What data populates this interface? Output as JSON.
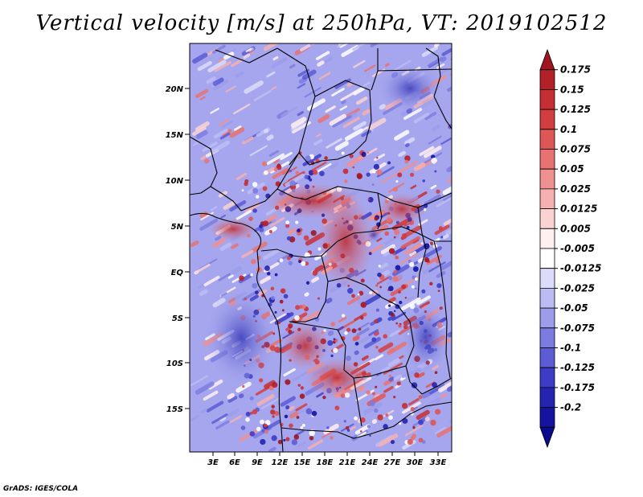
{
  "title": "Vertical velocity [m/s] at 250hPa, VT: 2019102512",
  "footer": "GrADS: IGES/COLA",
  "map": {
    "variable": "Vertical velocity",
    "units": "m/s",
    "level": "250hPa",
    "valid_time": "2019102512",
    "lat_labels": [
      "20N",
      "15N",
      "10N",
      "5N",
      "EQ",
      "5S",
      "10S",
      "15S"
    ],
    "lon_labels": [
      "3E",
      "6E",
      "9E",
      "12E",
      "15E",
      "18E",
      "21E",
      "24E",
      "27E",
      "30E",
      "33E"
    ]
  },
  "colorbar": {
    "labels": [
      "0.175",
      "0.15",
      "0.125",
      "0.1",
      "0.075",
      "0.05",
      "0.025",
      "0.0125",
      "0.005",
      "-0.005",
      "-0.0125",
      "-0.025",
      "-0.05",
      "-0.075",
      "-0.1",
      "-0.125",
      "-0.175",
      "-0.2"
    ],
    "colors": [
      "#a01620",
      "#b22028",
      "#c42e34",
      "#d23e40",
      "#de5656",
      "#e87272",
      "#f09090",
      "#f6b0b0",
      "#fad2d2",
      "#fff0f0",
      "#ffffff",
      "#dcdcfa",
      "#bcbcf4",
      "#9c9cea",
      "#7c7ce0",
      "#5c5cd4",
      "#3c3cc6",
      "#2424b0",
      "#1414a0",
      "#0a0a8c"
    ]
  }
}
